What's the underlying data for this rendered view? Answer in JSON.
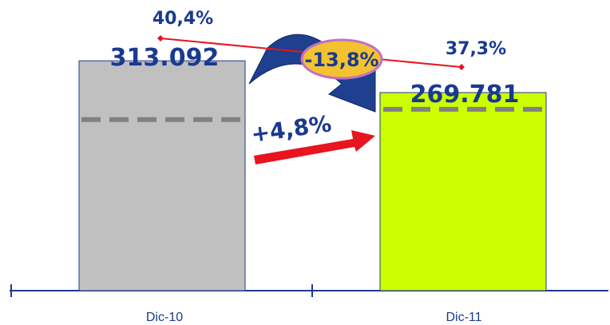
{
  "colors": {
    "bar_dic10": "#c0c0c0",
    "bar_dic11": "#ccff00",
    "bar_stroke": "#1f3b8c",
    "text_navy": "#1a3a8f",
    "trend_red": "#e8141e",
    "dash_gray": "#808080",
    "axis": "#1f3b8c",
    "arc_fill": "#1f3f8f",
    "ellipse_fill": "#f2c230",
    "ellipse_stroke": "#c070c8"
  },
  "icons": {
    "curved_arrow": "curved-arrow-icon",
    "growth_arrow": "arrow-right-icon"
  },
  "chart_data": {
    "type": "bar",
    "categories": [
      "Dic-10",
      "Dic-11"
    ],
    "values": [
      313092,
      269781
    ],
    "value_labels": [
      "313.092",
      "269.781"
    ],
    "ylim": [
      0,
      360000
    ],
    "grid": false,
    "legend": "none",
    "dashed_reference": [
      233000,
      247000
    ],
    "share_line": {
      "values": [
        40.4,
        37.3
      ],
      "labels": [
        "40,4%",
        "37,3%"
      ]
    },
    "annotations": {
      "change_label": "-13,8%",
      "growth_label": "+4,8%"
    }
  }
}
